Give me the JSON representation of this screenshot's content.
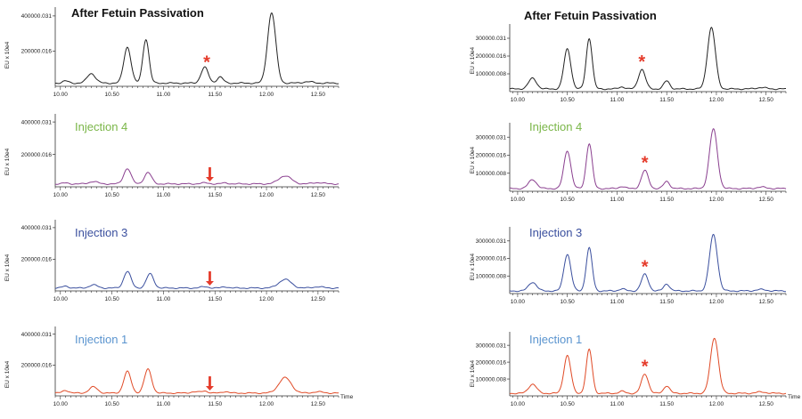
{
  "chart_data": [
    {
      "type": "line",
      "title": "After Fetuin Passivation",
      "title_color": "#111111",
      "line_color": "#222222",
      "ylabel": "EU x 10e4",
      "yticks": [
        {
          "label": "400000.031",
          "value": 400000.031
        },
        {
          "label": "200000.016",
          "value": 200000.016
        }
      ],
      "ylim": [
        0,
        450000
      ],
      "xlim": [
        9.95,
        12.7
      ],
      "xticks": [
        "10.00",
        "10.50",
        "11.00",
        "11.50",
        "12.00",
        "12.50"
      ],
      "xtick_values": [
        10.0,
        10.5,
        11.0,
        11.5,
        12.0,
        12.5
      ],
      "xlabel": "",
      "baseline": 18000,
      "peaks": [
        [
          10.05,
          12000,
          0.03
        ],
        [
          10.3,
          55000,
          0.04
        ],
        [
          10.65,
          205000,
          0.035
        ],
        [
          10.83,
          250000,
          0.03
        ],
        [
          11.4,
          90000,
          0.035
        ],
        [
          11.55,
          35000,
          0.03
        ],
        [
          12.05,
          400000,
          0.04
        ],
        [
          12.4,
          8000,
          0.05
        ]
      ],
      "annotation": {
        "type": "asterisk",
        "label": "*",
        "x": 11.42
      }
    },
    {
      "type": "line",
      "title": "Injection 4",
      "title_color": "#7ab648",
      "line_color": "#8a3f8f",
      "ylabel": "EU x 10e4",
      "yticks": [
        {
          "label": "400000.031",
          "value": 400000.031
        },
        {
          "label": "200000.016",
          "value": 200000.016
        }
      ],
      "ylim": [
        0,
        450000
      ],
      "xlim": [
        9.95,
        12.7
      ],
      "xticks": [
        "10.00",
        "10.50",
        "11.00",
        "11.50",
        "12.00",
        "12.50"
      ],
      "xtick_values": [
        10.0,
        10.5,
        11.0,
        11.5,
        12.0,
        12.5
      ],
      "xlabel": "",
      "baseline": 18000,
      "peaks": [
        [
          10.05,
          5000,
          0.03
        ],
        [
          10.32,
          15000,
          0.04
        ],
        [
          10.65,
          95000,
          0.035
        ],
        [
          10.85,
          70000,
          0.035
        ],
        [
          11.4,
          6000,
          0.04
        ],
        [
          11.6,
          6000,
          0.03
        ],
        [
          12.18,
          50000,
          0.06
        ],
        [
          12.5,
          8000,
          0.05
        ]
      ],
      "annotation": {
        "type": "arrow",
        "x": 11.45
      }
    },
    {
      "type": "line",
      "title": "Injection 3",
      "title_color": "#3a4f9e",
      "line_color": "#3a4f9e",
      "ylabel": "EU x 10e4",
      "yticks": [
        {
          "label": "400000.031",
          "value": 400000.031
        },
        {
          "label": "200000.016",
          "value": 200000.016
        }
      ],
      "ylim": [
        0,
        450000
      ],
      "xlim": [
        9.95,
        12.7
      ],
      "xticks": [
        "10.00",
        "10.50",
        "11.00",
        "11.50",
        "12.00",
        "12.50"
      ],
      "xtick_values": [
        10.0,
        10.5,
        11.0,
        11.5,
        12.0,
        12.5
      ],
      "xlabel": "",
      "baseline": 18000,
      "peaks": [
        [
          10.05,
          12000,
          0.03
        ],
        [
          10.32,
          20000,
          0.04
        ],
        [
          10.65,
          105000,
          0.035
        ],
        [
          10.87,
          90000,
          0.035
        ],
        [
          11.4,
          8000,
          0.04
        ],
        [
          11.6,
          8000,
          0.03
        ],
        [
          12.18,
          55000,
          0.06
        ],
        [
          12.5,
          8000,
          0.05
        ]
      ],
      "annotation": {
        "type": "arrow",
        "x": 11.45
      }
    },
    {
      "type": "line",
      "title": "Injection 1",
      "title_color": "#5a94cf",
      "line_color": "#e04a26",
      "ylabel": "EU x 10e4",
      "yticks": [
        {
          "label": "400000.031",
          "value": 400000.031
        },
        {
          "label": "200000.016",
          "value": 200000.016
        }
      ],
      "ylim": [
        0,
        450000
      ],
      "xlim": [
        9.95,
        12.7
      ],
      "xticks": [
        "10.00",
        "10.50",
        "11.00",
        "11.50",
        "12.00",
        "12.50"
      ],
      "xtick_values": [
        10.0,
        10.5,
        11.0,
        11.5,
        12.0,
        12.5
      ],
      "xlabel": "Time",
      "baseline": 18000,
      "peaks": [
        [
          10.05,
          18000,
          0.03
        ],
        [
          10.32,
          40000,
          0.04
        ],
        [
          10.65,
          140000,
          0.035
        ],
        [
          10.85,
          155000,
          0.035
        ],
        [
          11.3,
          8000,
          0.04
        ],
        [
          11.4,
          14000,
          0.03
        ],
        [
          11.6,
          10000,
          0.03
        ],
        [
          12.18,
          100000,
          0.06
        ],
        [
          12.5,
          8000,
          0.05
        ]
      ],
      "annotation": {
        "type": "arrow",
        "x": 11.45
      }
    },
    {
      "type": "line",
      "title": "After Fetuin Passivation",
      "title_color": "#111111",
      "line_color": "#222222",
      "ylabel": "EU x 10e4",
      "yticks": [
        {
          "label": "300000.031",
          "value": 300000.031
        },
        {
          "label": "200000.016",
          "value": 200000.016
        },
        {
          "label": "100000.008",
          "value": 100000.008
        }
      ],
      "ylim": [
        0,
        380000
      ],
      "xlim": [
        9.92,
        12.7
      ],
      "xticks": [
        "10.00",
        "10.50",
        "11.00",
        "11.50",
        "12.00",
        "12.50"
      ],
      "xtick_values": [
        10.0,
        10.5,
        11.0,
        11.5,
        12.0,
        12.5
      ],
      "xlabel": "",
      "baseline": 15000,
      "peaks": [
        [
          10.15,
          60000,
          0.04
        ],
        [
          10.5,
          225000,
          0.035
        ],
        [
          10.72,
          285000,
          0.03
        ],
        [
          11.05,
          12000,
          0.03
        ],
        [
          11.25,
          110000,
          0.035
        ],
        [
          11.5,
          45000,
          0.03
        ],
        [
          11.95,
          345000,
          0.04
        ],
        [
          12.45,
          8000,
          0.05
        ]
      ],
      "annotation": {
        "type": "asterisk",
        "label": "*",
        "x": 11.25
      }
    },
    {
      "type": "line",
      "title": "Injection 4",
      "title_color": "#7ab648",
      "line_color": "#8a3f8f",
      "ylabel": "EU x 10e4",
      "yticks": [
        {
          "label": "300000.031",
          "value": 300000.031
        },
        {
          "label": "200000.016",
          "value": 200000.016
        },
        {
          "label": "100000.008",
          "value": 100000.008
        }
      ],
      "ylim": [
        0,
        380000
      ],
      "xlim": [
        9.92,
        12.7
      ],
      "xticks": [
        "10.00",
        "10.50",
        "11.00",
        "11.50",
        "12.00",
        "12.50"
      ],
      "xtick_values": [
        10.0,
        10.5,
        11.0,
        11.5,
        12.0,
        12.5
      ],
      "xlabel": "",
      "baseline": 15000,
      "peaks": [
        [
          10.15,
          50000,
          0.04
        ],
        [
          10.5,
          210000,
          0.035
        ],
        [
          10.72,
          250000,
          0.03
        ],
        [
          11.05,
          12000,
          0.03
        ],
        [
          11.28,
          100000,
          0.035
        ],
        [
          11.5,
          40000,
          0.03
        ],
        [
          11.97,
          330000,
          0.04
        ],
        [
          12.45,
          8000,
          0.05
        ]
      ],
      "annotation": {
        "type": "asterisk",
        "label": "*",
        "x": 11.28
      }
    },
    {
      "type": "line",
      "title": "Injection 3",
      "title_color": "#3a4f9e",
      "line_color": "#3a4f9e",
      "ylabel": "EU x 10e4",
      "yticks": [
        {
          "label": "300000.031",
          "value": 300000.031
        },
        {
          "label": "200000.016",
          "value": 200000.016
        },
        {
          "label": "100000.008",
          "value": 100000.008
        }
      ],
      "ylim": [
        0,
        380000
      ],
      "xlim": [
        9.92,
        12.7
      ],
      "xticks": [
        "10.00",
        "10.50",
        "11.00",
        "11.50",
        "12.00",
        "12.50"
      ],
      "xtick_values": [
        10.0,
        10.5,
        11.0,
        11.5,
        12.0,
        12.5
      ],
      "xlabel": "",
      "baseline": 15000,
      "peaks": [
        [
          10.15,
          50000,
          0.04
        ],
        [
          10.5,
          210000,
          0.035
        ],
        [
          10.72,
          245000,
          0.03
        ],
        [
          11.05,
          12000,
          0.03
        ],
        [
          11.28,
          95000,
          0.035
        ],
        [
          11.5,
          40000,
          0.03
        ],
        [
          11.97,
          320000,
          0.04
        ],
        [
          12.45,
          8000,
          0.05
        ]
      ],
      "annotation": {
        "type": "asterisk",
        "label": "*",
        "x": 11.28
      }
    },
    {
      "type": "line",
      "title": "Injection 1",
      "title_color": "#5a94cf",
      "line_color": "#e04a26",
      "ylabel": "EU x 10e4",
      "yticks": [
        {
          "label": "300000.031",
          "value": 300000.031
        },
        {
          "label": "200000.016",
          "value": 200000.016
        },
        {
          "label": "100000.008",
          "value": 100000.008
        }
      ],
      "ylim": [
        0,
        380000
      ],
      "xlim": [
        9.92,
        12.7
      ],
      "xticks": [
        "10.00",
        "10.50",
        "11.00",
        "11.50",
        "12.00",
        "12.50"
      ],
      "xtick_values": [
        10.0,
        10.5,
        11.0,
        11.5,
        12.0,
        12.5
      ],
      "xlabel": "Time",
      "baseline": 15000,
      "peaks": [
        [
          10.15,
          55000,
          0.04
        ],
        [
          10.5,
          225000,
          0.035
        ],
        [
          10.72,
          260000,
          0.03
        ],
        [
          11.05,
          12000,
          0.03
        ],
        [
          11.28,
          115000,
          0.035
        ],
        [
          11.5,
          45000,
          0.03
        ],
        [
          11.98,
          330000,
          0.04
        ],
        [
          12.45,
          8000,
          0.05
        ]
      ],
      "annotation": {
        "type": "asterisk",
        "label": "*",
        "x": 11.28
      }
    }
  ]
}
